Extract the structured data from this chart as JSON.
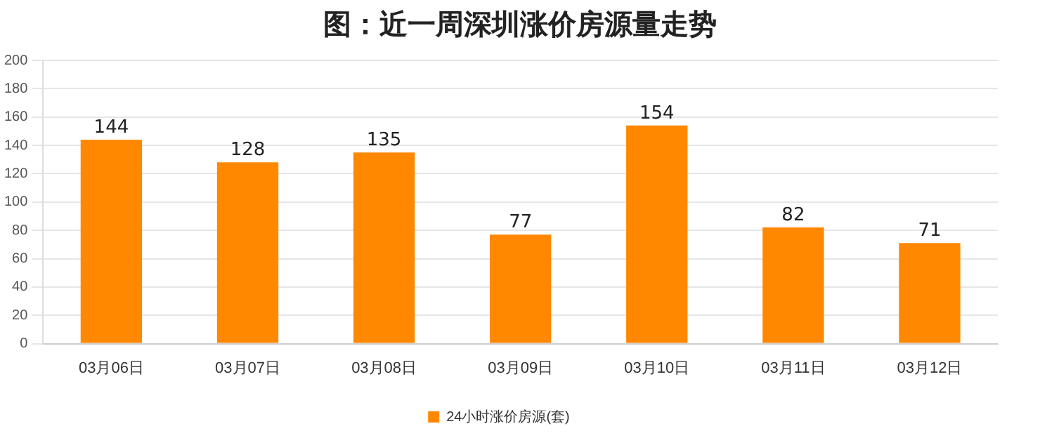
{
  "chart_data": {
    "type": "bar",
    "title": "图：近一周深圳涨价房源量走势",
    "categories": [
      "03月06日",
      "03月07日",
      "03月08日",
      "03月09日",
      "03月10日",
      "03月11日",
      "03月12日"
    ],
    "series": [
      {
        "name": "24小时涨价房源(套)",
        "color": "#ff8800",
        "values": [
          144,
          128,
          135,
          77,
          154,
          82,
          71
        ]
      }
    ],
    "ylim": [
      0,
      200
    ],
    "yticks": [
      0,
      20,
      40,
      60,
      80,
      100,
      120,
      140,
      160,
      180,
      200
    ],
    "grid": "y",
    "legend": "bottom",
    "data_labels": true
  }
}
